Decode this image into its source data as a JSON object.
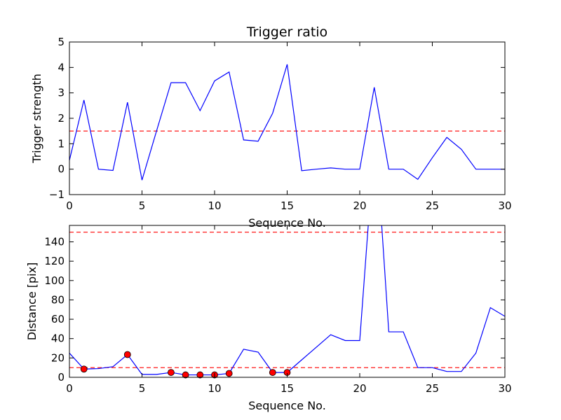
{
  "chart_data": [
    {
      "type": "line",
      "title": "Trigger ratio",
      "xlabel": "Sequence No.",
      "ylabel": "Trigger strength",
      "xlim": [
        0,
        30
      ],
      "ylim": [
        -1,
        5
      ],
      "xticks": [
        "0",
        "5",
        "10",
        "15",
        "20",
        "25",
        "30"
      ],
      "yticks": [
        "−1",
        "0",
        "1",
        "2",
        "3",
        "4",
        "5"
      ],
      "grid": false,
      "colors": {
        "line": "#0000ff",
        "threshold": "#ff0000"
      },
      "series": [
        {
          "x": [
            0,
            1,
            2,
            3,
            4,
            5,
            6,
            7,
            8,
            9,
            10,
            11,
            12,
            13,
            14,
            15,
            16,
            17,
            18,
            19,
            20,
            21,
            22,
            23,
            24,
            25,
            26,
            27,
            28,
            29,
            30
          ],
          "values": [
            0.35,
            2.72,
            0.0,
            -0.05,
            2.63,
            -0.43,
            1.5,
            3.4,
            3.4,
            2.3,
            3.47,
            3.82,
            1.15,
            1.1,
            2.2,
            4.12,
            -0.06,
            0.0,
            0.05,
            0.0,
            0.0,
            3.22,
            0.0,
            0.0,
            -0.4,
            0.45,
            1.25,
            0.78,
            0.0,
            0.0,
            0.0
          ]
        }
      ],
      "thresholds": [
        1.5
      ]
    },
    {
      "type": "line",
      "title": "",
      "xlabel": "Sequence No.",
      "ylabel": "Distance [pix]",
      "xlim": [
        0,
        30
      ],
      "ylim": [
        0,
        157
      ],
      "xticks": [
        "0",
        "5",
        "10",
        "15",
        "20",
        "25",
        "30"
      ],
      "yticks": [
        "0",
        "20",
        "40",
        "60",
        "80",
        "100",
        "120",
        "140"
      ],
      "ytick_values": [
        0,
        20,
        40,
        60,
        80,
        100,
        120,
        140
      ],
      "grid": false,
      "colors": {
        "line": "#0000ff",
        "threshold": "#ff0000",
        "marker_fill": "#ff0000",
        "marker_edge": "#000000"
      },
      "series": [
        {
          "x": [
            0,
            1,
            2,
            3,
            4,
            5,
            6,
            7,
            8,
            9,
            10,
            11,
            12,
            13,
            14,
            15,
            16,
            17,
            18,
            19,
            20,
            20.6,
            21.5,
            22,
            23,
            24,
            25,
            26,
            27,
            28,
            29,
            30
          ],
          "values": [
            25,
            8.5,
            9,
            11,
            23.5,
            3,
            3,
            5,
            2.5,
            2.5,
            2.5,
            4,
            29,
            26,
            5,
            5,
            18,
            31,
            44,
            38,
            38,
            160,
            160,
            47,
            47,
            10,
            10,
            6,
            6,
            25,
            72,
            63
          ]
        }
      ],
      "markers": {
        "x": [
          1,
          4,
          7,
          8,
          9,
          10,
          11,
          14,
          15
        ],
        "values": [
          8.5,
          23.5,
          5,
          2.5,
          2.5,
          2.5,
          4,
          5,
          5
        ]
      },
      "thresholds": [
        150,
        10
      ]
    }
  ]
}
